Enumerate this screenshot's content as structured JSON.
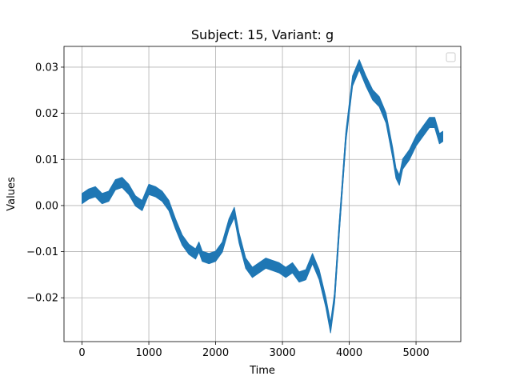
{
  "chart_data": {
    "type": "line",
    "title": "Subject: 15, Variant: g",
    "xlabel": "Time",
    "ylabel": "Values",
    "xlim": [
      -270,
      5670
    ],
    "ylim": [
      -0.0295,
      0.0345
    ],
    "x_ticks": [
      0,
      1000,
      2000,
      3000,
      4000,
      5000
    ],
    "x_tick_labels": [
      "0",
      "1000",
      "2000",
      "3000",
      "4000",
      "5000"
    ],
    "y_ticks": [
      -0.02,
      -0.01,
      0.0,
      0.01,
      0.02,
      0.03
    ],
    "y_tick_labels": [
      "−0.02",
      "−0.01",
      "0.00",
      "0.01",
      "0.02",
      "0.03"
    ],
    "grid": true,
    "legend": {
      "placement": "top-right",
      "entries": []
    },
    "series": [
      {
        "color": "#1f77b4",
        "band_halfwidth": 0.0011,
        "x": [
          0,
          100,
          200,
          300,
          400,
          500,
          600,
          700,
          800,
          900,
          1000,
          1100,
          1200,
          1300,
          1400,
          1500,
          1600,
          1700,
          1750,
          1800,
          1900,
          2000,
          2100,
          2200,
          2280,
          2350,
          2450,
          2550,
          2650,
          2750,
          2850,
          2950,
          3050,
          3150,
          3250,
          3350,
          3450,
          3550,
          3650,
          3720,
          3780,
          3850,
          3950,
          4050,
          4150,
          4250,
          4350,
          4450,
          4550,
          4650,
          4700,
          4750,
          4800,
          4900,
          5000,
          5100,
          5200,
          5280,
          5350,
          5400
        ],
        "y": [
          0.0015,
          0.0025,
          0.003,
          0.0015,
          0.002,
          0.0045,
          0.005,
          0.0035,
          0.001,
          0.0,
          0.0035,
          0.003,
          0.002,
          0.0,
          -0.004,
          -0.0075,
          -0.0095,
          -0.0105,
          -0.009,
          -0.011,
          -0.0115,
          -0.011,
          -0.009,
          -0.004,
          -0.0015,
          -0.007,
          -0.0125,
          -0.0145,
          -0.0135,
          -0.0125,
          -0.013,
          -0.0135,
          -0.0145,
          -0.0135,
          -0.0155,
          -0.015,
          -0.0115,
          -0.015,
          -0.021,
          -0.0265,
          -0.02,
          -0.005,
          0.015,
          0.027,
          0.0305,
          0.027,
          0.024,
          0.0225,
          0.019,
          0.0115,
          0.007,
          0.0055,
          0.009,
          0.011,
          0.014,
          0.016,
          0.018,
          0.018,
          0.0145,
          0.015
        ]
      }
    ]
  }
}
